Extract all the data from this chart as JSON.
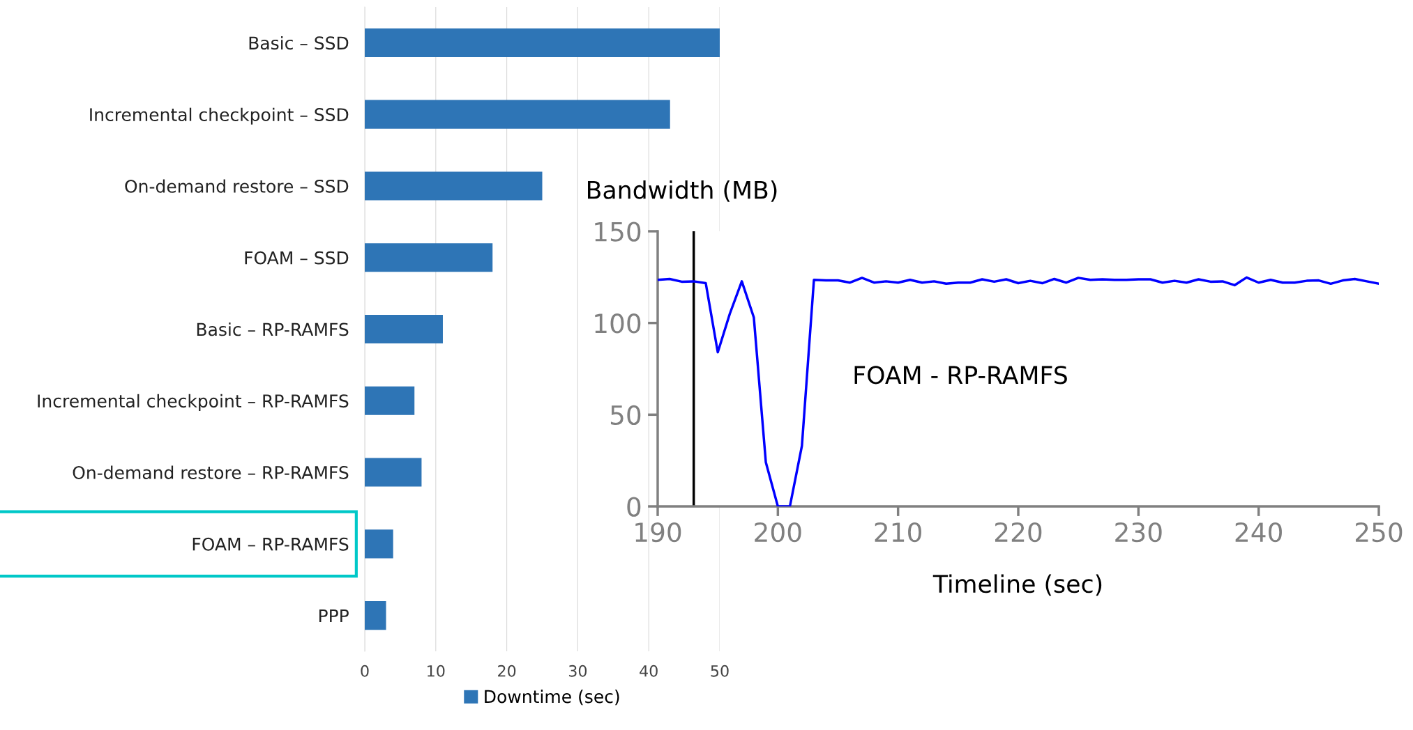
{
  "chart_data": [
    {
      "type": "bar",
      "orientation": "horizontal",
      "categories": [
        "Basic – SSD",
        "Incremental checkpoint – SSD",
        "On-demand restore – SSD",
        "FOAM – SSD",
        "Basic – RP-RAMFS",
        "Incremental checkpoint – RP-RAMFS",
        "On-demand restore – RP-RAMFS",
        "FOAM – RP-RAMFS",
        "PPP"
      ],
      "series": [
        {
          "name": "Downtime (sec)",
          "color": "#2e75b6",
          "values": [
            50,
            43,
            25,
            18,
            11,
            7,
            8,
            4,
            3
          ]
        }
      ],
      "xlim": [
        0,
        50
      ],
      "xticks": [
        0,
        10,
        20,
        30,
        40,
        50
      ],
      "grid": "x",
      "legend": "bottom"
    },
    {
      "type": "line",
      "xlabel": "Timeline (sec)",
      "ylabel": "Bandwidth (MB)",
      "x": [
        190,
        191,
        192,
        193,
        194,
        195,
        196,
        197,
        198,
        199,
        200,
        201,
        202,
        203,
        204,
        205,
        206,
        207,
        208,
        209,
        210,
        211,
        212,
        213,
        214,
        215,
        216,
        217,
        218,
        219,
        220,
        221,
        222,
        223,
        224,
        225,
        226,
        227,
        228,
        229,
        230,
        231,
        232,
        233,
        234,
        235,
        236,
        237,
        238,
        239,
        240,
        241,
        242,
        243,
        244,
        245,
        246,
        247,
        248,
        249,
        250
      ],
      "series": [
        {
          "color": "#0000ff",
          "values": [
            123.5,
            124,
            122.5,
            122.7,
            121.7,
            84,
            105,
            122.7,
            103,
            24,
            0,
            0,
            33,
            123.5,
            123.2,
            123.2,
            122,
            124.6,
            122,
            122.7,
            122,
            123.5,
            122,
            122.7,
            121.4,
            122,
            122,
            123.8,
            122.5,
            123.8,
            121.7,
            123,
            121.7,
            124,
            122,
            124.6,
            123.5,
            123.8,
            123.5,
            123.5,
            123.8,
            123.8,
            122,
            123,
            122,
            123.8,
            122.5,
            122.7,
            120.6,
            124.8,
            122,
            123.5,
            122,
            122,
            123,
            123.2,
            121.4,
            123.2,
            124,
            122.7,
            121.4
          ]
        }
      ],
      "xlim": [
        190,
        250
      ],
      "xticks": [
        190,
        200,
        210,
        220,
        230,
        240,
        250
      ],
      "ylim": [
        0,
        150
      ],
      "yticks": [
        0,
        50,
        100,
        150
      ],
      "ref_lines": [
        {
          "axis": "x",
          "value": 193,
          "color": "#000000"
        }
      ],
      "annotations": [
        "FOAM - RP-RAMFS"
      ]
    }
  ]
}
